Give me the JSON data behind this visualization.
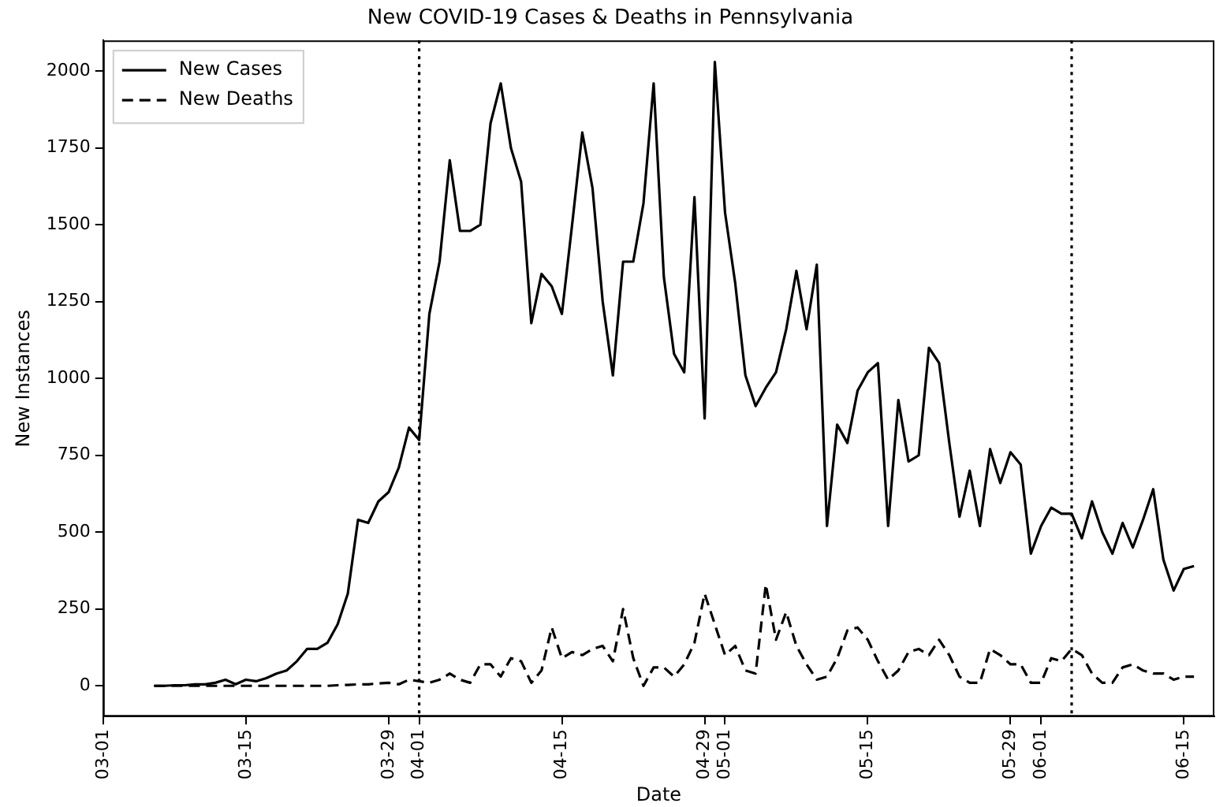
{
  "chart_data": {
    "type": "line",
    "title": "New COVID-19 Cases & Deaths in Pennsylvania",
    "xlabel": "Date",
    "ylabel": "New Instances",
    "x": [
      "--03-06",
      "--03-07",
      "--03-08",
      "--03-09",
      "--03-10",
      "--03-11",
      "--03-12",
      "--03-13",
      "--03-14",
      "--03-15",
      "--03-16",
      "--03-17",
      "--03-18",
      "--03-19",
      "--03-20",
      "--03-21",
      "--03-22",
      "--03-23",
      "--03-24",
      "--03-25",
      "--03-26",
      "--03-27",
      "--03-28",
      "--03-29",
      "--03-30",
      "--03-31",
      "--04-01",
      "--04-02",
      "--04-03",
      "--04-04",
      "--04-05",
      "--04-06",
      "--04-07",
      "--04-08",
      "--04-09",
      "--04-10",
      "--04-11",
      "--04-12",
      "--04-13",
      "--04-14",
      "--04-15",
      "--04-16",
      "--04-17",
      "--04-18",
      "--04-19",
      "--04-20",
      "--04-21",
      "--04-22",
      "--04-23",
      "--04-24",
      "--04-25",
      "--04-26",
      "--04-27",
      "--04-28",
      "--04-29",
      "--04-30",
      "--05-01",
      "--05-02",
      "--05-03",
      "--05-04",
      "--05-05",
      "--05-06",
      "--05-07",
      "--05-08",
      "--05-09",
      "--05-10",
      "--05-11",
      "--05-12",
      "--05-13",
      "--05-14",
      "--05-15",
      "--05-16",
      "--05-17",
      "--05-18",
      "--05-19",
      "--05-20",
      "--05-21",
      "--05-22",
      "--05-23",
      "--05-24",
      "--05-25",
      "--05-26",
      "--05-27",
      "--05-28",
      "--05-29",
      "--05-30",
      "--05-31",
      "--06-01",
      "--06-02",
      "--06-03",
      "--06-04",
      "--06-05",
      "--06-06",
      "--06-07",
      "--06-08",
      "--06-09",
      "--06-10",
      "--06-11",
      "--06-12",
      "--06-13",
      "--06-14",
      "--06-15",
      "--06-16"
    ],
    "series": [
      {
        "name": "New Cases",
        "color": "#000000",
        "line_style": "solid",
        "values": [
          0,
          0,
          2,
          2,
          5,
          5,
          10,
          20,
          5,
          20,
          15,
          25,
          40,
          50,
          80,
          120,
          120,
          140,
          200,
          300,
          540,
          530,
          600,
          630,
          710,
          840,
          800,
          1210,
          1380,
          1710,
          1480,
          1480,
          1500,
          1830,
          1960,
          1750,
          1640,
          1180,
          1340,
          1300,
          1210,
          1500,
          1800,
          1620,
          1250,
          1010,
          1380,
          1380,
          1570,
          1960,
          1330,
          1080,
          1020,
          1590,
          870,
          2030,
          1540,
          1310,
          1010,
          910,
          970,
          1020,
          1160,
          1350,
          1160,
          1370,
          520,
          850,
          790,
          960,
          1020,
          1050,
          520,
          930,
          730,
          750,
          1100,
          1050,
          790,
          550,
          700,
          520,
          770,
          660,
          760,
          720,
          430,
          520,
          580,
          560,
          560,
          480,
          600,
          500,
          430,
          530,
          450,
          540,
          640,
          410,
          310,
          380,
          390
        ]
      },
      {
        "name": "New Deaths",
        "color": "#000000",
        "line_style": "dashed",
        "values": [
          0,
          0,
          0,
          0,
          0,
          0,
          0,
          0,
          0,
          0,
          0,
          0,
          0,
          0,
          0,
          0,
          0,
          0,
          2,
          3,
          5,
          5,
          8,
          10,
          5,
          20,
          15,
          10,
          20,
          40,
          20,
          10,
          70,
          70,
          30,
          90,
          80,
          10,
          50,
          190,
          90,
          110,
          100,
          120,
          130,
          80,
          250,
          90,
          0,
          60,
          60,
          30,
          70,
          140,
          300,
          200,
          100,
          130,
          50,
          40,
          330,
          150,
          240,
          130,
          70,
          20,
          30,
          90,
          180,
          190,
          150,
          80,
          20,
          50,
          110,
          120,
          100,
          150,
          100,
          30,
          10,
          10,
          120,
          100,
          70,
          70,
          10,
          10,
          90,
          80,
          120,
          100,
          40,
          10,
          10,
          60,
          70,
          50,
          40,
          40,
          20,
          30,
          30
        ]
      }
    ],
    "xlim": [
      "--03-01",
      "--06-18"
    ],
    "xticks": [
      {
        "value": "--03-01",
        "label": "03-01"
      },
      {
        "value": "--03-15",
        "label": "03-15"
      },
      {
        "value": "--03-29",
        "label": "03-29"
      },
      {
        "value": "--04-01",
        "label": "04-01"
      },
      {
        "value": "--04-15",
        "label": "04-15"
      },
      {
        "value": "--04-29",
        "label": "04-29"
      },
      {
        "value": "--05-01",
        "label": "05-01"
      },
      {
        "value": "--05-15",
        "label": "05-15"
      },
      {
        "value": "--05-29",
        "label": "05-29"
      },
      {
        "value": "--06-01",
        "label": "06-01"
      },
      {
        "value": "--06-15",
        "label": "06-15"
      }
    ],
    "ylim": [
      -100,
      2100
    ],
    "yticks": [
      0,
      250,
      500,
      750,
      1000,
      1250,
      1500,
      1750,
      2000
    ],
    "ref_lines": [
      {
        "axis": "x",
        "value": "--04-01",
        "color": "#000000",
        "line_style": "dotted"
      },
      {
        "axis": "x",
        "value": "--06-04",
        "color": "#000000",
        "line_style": "dotted"
      }
    ],
    "legend": "top left",
    "grid": false,
    "marker": "none"
  }
}
